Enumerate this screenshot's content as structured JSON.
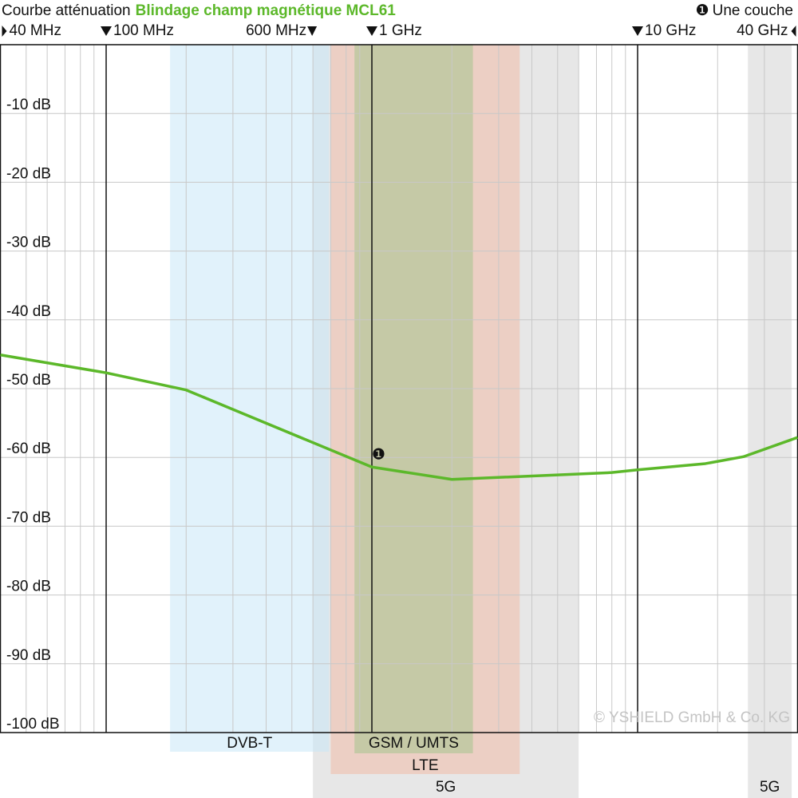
{
  "chart_data": {
    "type": "line",
    "title": "Courbe atténuation",
    "subtitle": "Blindage champ magnétique MCL61",
    "xscale": "log",
    "xlim": [
      40,
      40000
    ],
    "ylim": [
      -100,
      0
    ],
    "xticks": [
      {
        "value": 40,
        "label": "40 MHz"
      },
      {
        "value": 100,
        "label": "100 MHz"
      },
      {
        "value": 600,
        "label": "600 MHz"
      },
      {
        "value": 1000,
        "label": "1 GHz"
      },
      {
        "value": 10000,
        "label": "10 GHz"
      },
      {
        "value": 40000,
        "label": "40 GHz"
      }
    ],
    "x_major": [
      100,
      1000,
      10000
    ],
    "x_grid": [
      50,
      60,
      70,
      80,
      90,
      200,
      300,
      400,
      500,
      600,
      700,
      800,
      900,
      2000,
      3000,
      4000,
      5000,
      6000,
      7000,
      8000,
      9000,
      20000,
      30000
    ],
    "yticks": [
      {
        "value": -10,
        "label": "-10 dB"
      },
      {
        "value": -20,
        "label": "-20 dB"
      },
      {
        "value": -30,
        "label": "-30 dB"
      },
      {
        "value": -40,
        "label": "-40 dB"
      },
      {
        "value": -50,
        "label": "-50 dB"
      },
      {
        "value": -60,
        "label": "-60 dB"
      },
      {
        "value": -70,
        "label": "-70 dB"
      },
      {
        "value": -80,
        "label": "-80 dB"
      },
      {
        "value": -90,
        "label": "-90 dB"
      },
      {
        "value": -100,
        "label": "-100 dB"
      }
    ],
    "grid": true,
    "x": [
      40,
      100,
      200,
      1000,
      2000,
      8000,
      10000,
      18000,
      25000,
      40000
    ],
    "series": [
      {
        "name": "Une couche",
        "marker": "❶",
        "color": "#5cb82a",
        "values": [
          -45.1,
          -47.7,
          -50.2,
          -61.4,
          -63.2,
          -62.2,
          -61.8,
          -60.9,
          -59.9,
          -57.1
        ]
      }
    ],
    "bands": [
      {
        "name": "5G",
        "from": 600,
        "to": 6000,
        "color": "#d4d4d4"
      },
      {
        "name": "DVB-T",
        "from": 174,
        "to": 690,
        "color": "#c8e8f8"
      },
      {
        "name": "LTE",
        "from": 700,
        "to": 3600,
        "color": "#f0bba8"
      },
      {
        "name": "GSM / UMTS",
        "from": 860,
        "to": 2400,
        "color": "#a6c48e"
      },
      {
        "name": "5G",
        "from": 26000,
        "to": 38000,
        "color": "#d4d4d4"
      }
    ],
    "annotations": [
      {
        "text": "❶",
        "x": 1060,
        "y": -59.7
      }
    ],
    "watermark": "© YSHIELD GmbH & Co. KG"
  }
}
